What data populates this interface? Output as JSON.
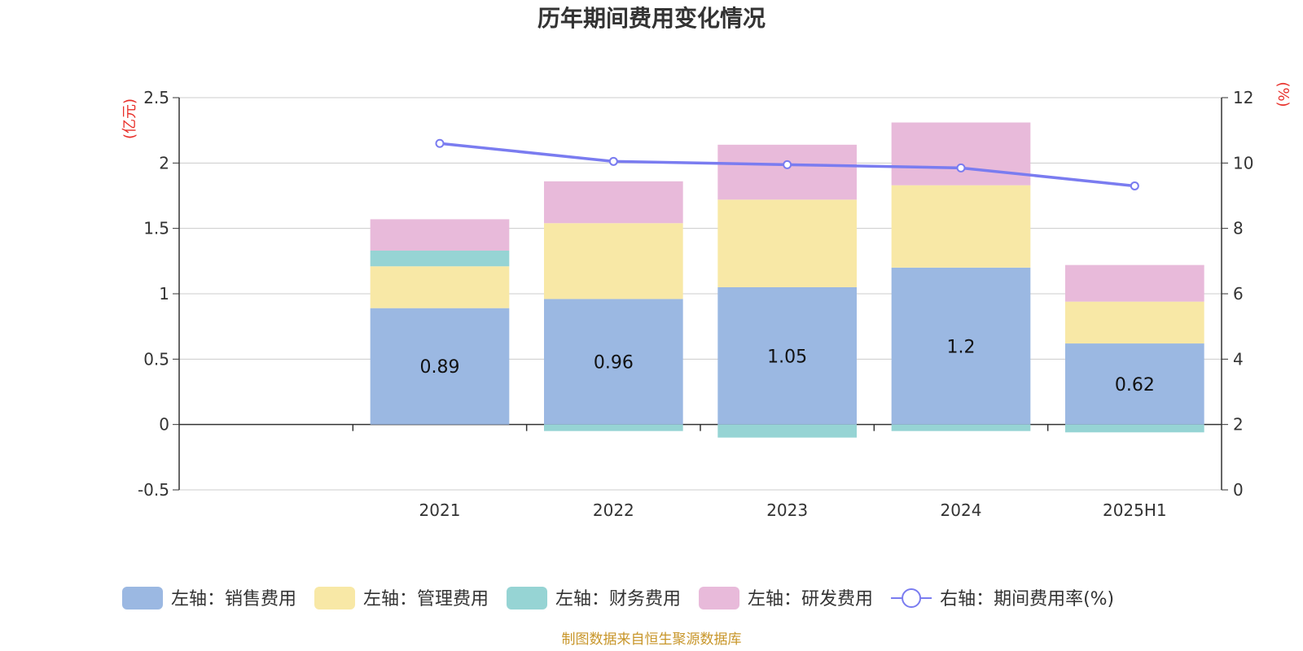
{
  "chart_data": {
    "type": "bar",
    "stacked": true,
    "title": "历年期间费用变化情况",
    "categories": [
      "2021",
      "2022",
      "2023",
      "2024",
      "2025H1"
    ],
    "left_axis": {
      "unit": "(亿元)",
      "range": [
        -0.5,
        2.5
      ],
      "ticks": [
        "-0.5",
        "0",
        "0.5",
        "1",
        "1.5",
        "2",
        "2.5"
      ]
    },
    "right_axis": {
      "unit": "(%)",
      "range": [
        0,
        12
      ],
      "ticks": [
        "0",
        "2",
        "4",
        "6",
        "8",
        "10",
        "12"
      ]
    },
    "series": [
      {
        "name": "左轴：销售费用",
        "type": "bar",
        "axis": "left",
        "color": "#9bb8e2",
        "values": [
          0.89,
          0.96,
          1.05,
          1.2,
          0.62
        ],
        "labels": [
          "0.89",
          "0.96",
          "1.05",
          "1.2",
          "0.62"
        ]
      },
      {
        "name": "左轴：管理费用",
        "type": "bar",
        "axis": "left",
        "color": "#f8e8a6",
        "values": [
          0.32,
          0.58,
          0.67,
          0.63,
          0.32
        ]
      },
      {
        "name": "左轴：财务费用",
        "type": "bar",
        "axis": "left",
        "color": "#96d4d4",
        "values": [
          0.12,
          -0.05,
          -0.1,
          -0.05,
          -0.06
        ]
      },
      {
        "name": "左轴：研发费用",
        "type": "bar",
        "axis": "left",
        "color": "#e8bada",
        "values": [
          0.24,
          0.32,
          0.42,
          0.48,
          0.28
        ]
      },
      {
        "name": "右轴：期间费用率(%)",
        "type": "line",
        "axis": "right",
        "color": "#7a7cf0",
        "values": [
          10.6,
          10.05,
          9.95,
          9.85,
          9.3
        ]
      }
    ],
    "legend_position": "bottom",
    "grid": true,
    "source": "制图数据来自恒生聚源数据库"
  }
}
